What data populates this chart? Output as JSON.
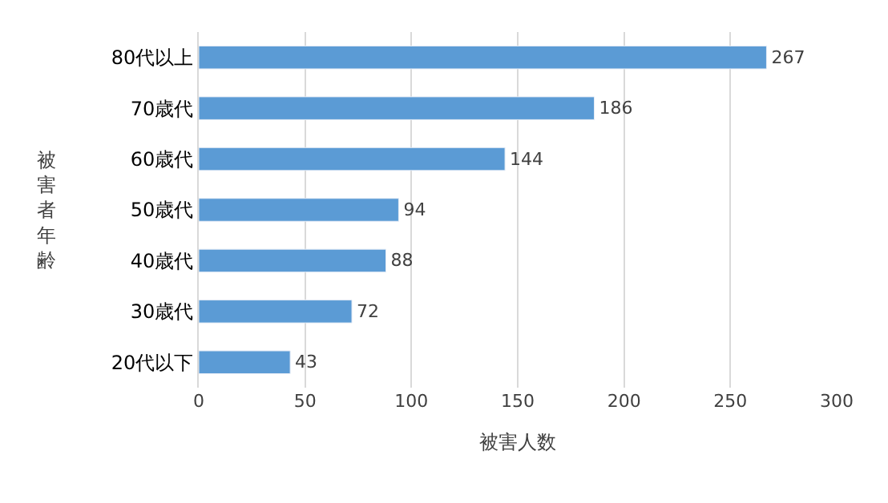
{
  "chart_data": {
    "type": "bar",
    "orientation": "horizontal",
    "categories": [
      "80代以上",
      "70歳代",
      "60歳代",
      "50歳代",
      "40歳代",
      "30歳代",
      "20代以下"
    ],
    "values": [
      267,
      186,
      144,
      94,
      88,
      72,
      43
    ],
    "color": "#5b9bd5",
    "xlabel": "被害人数",
    "ylabel": "被害者年齢",
    "xlim": [
      0,
      300
    ],
    "xticks": [
      0,
      50,
      100,
      150,
      200,
      250,
      300
    ],
    "grid": "x",
    "data_labels": true,
    "legend": false
  }
}
